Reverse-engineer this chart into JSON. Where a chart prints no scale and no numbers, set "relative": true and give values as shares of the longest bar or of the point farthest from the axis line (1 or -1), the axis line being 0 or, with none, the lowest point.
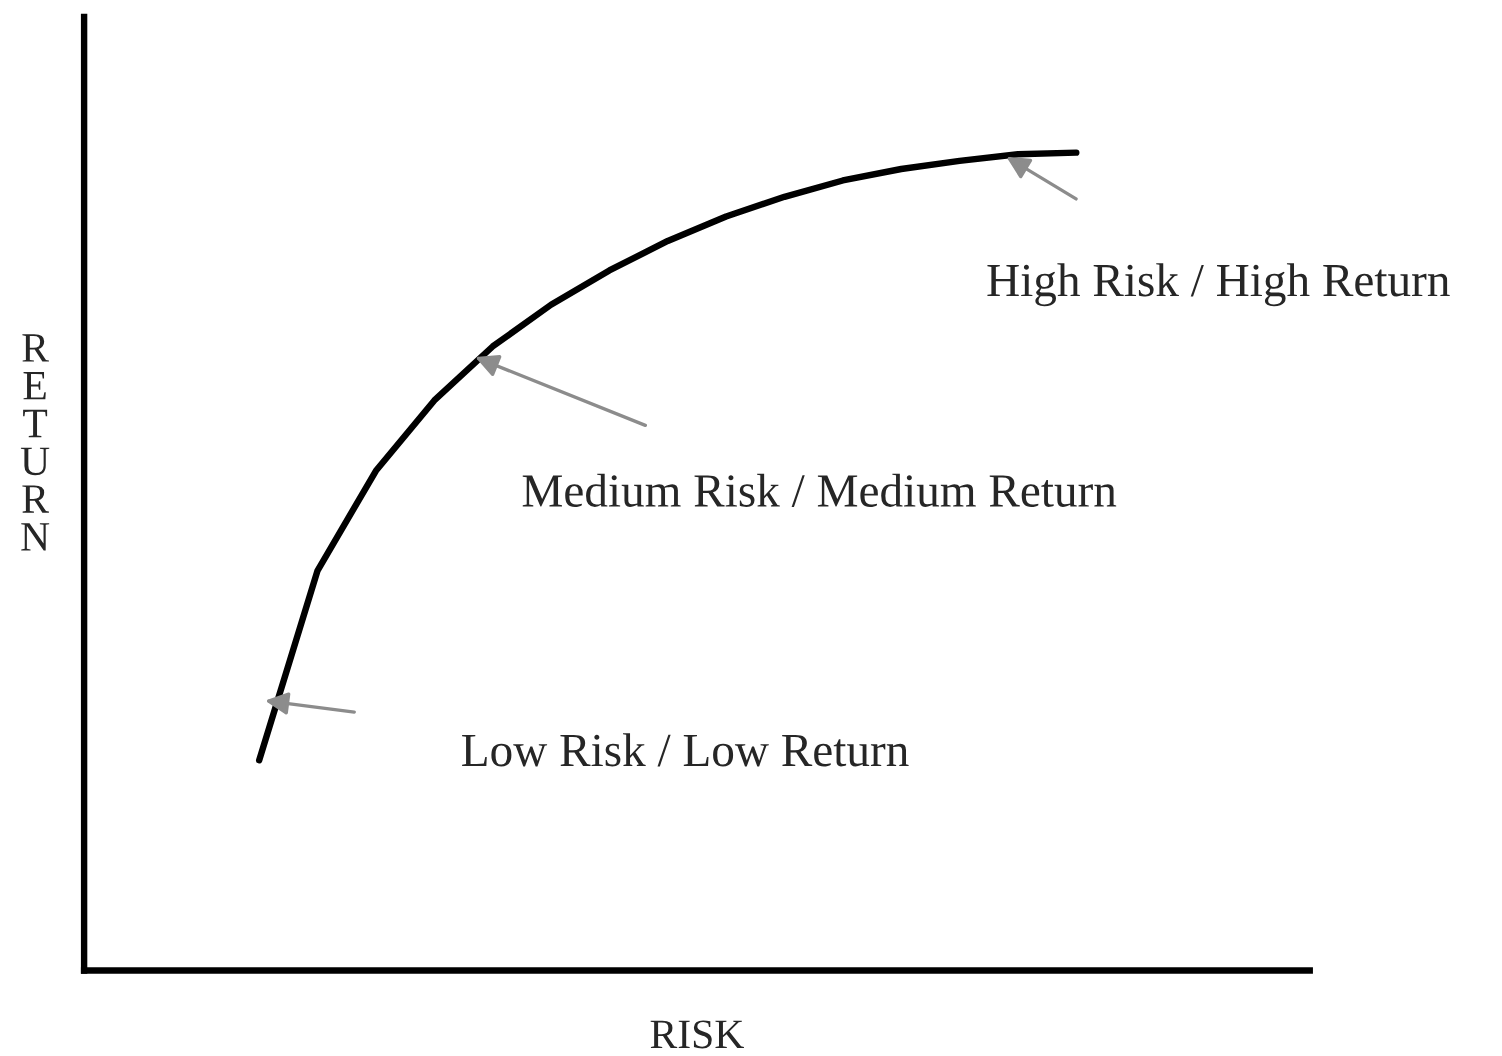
{
  "chart_data": {
    "type": "line",
    "relative": true,
    "xlabel": "RISK",
    "ylabel": "RETURN",
    "categories": [
      null,
      null,
      null,
      null,
      null,
      null,
      null,
      null,
      null,
      null,
      null,
      null,
      null,
      null,
      null,
      null,
      null,
      null,
      null,
      null,
      null,
      null
    ],
    "series": [
      {
        "color": "#000000",
        "values": [
          null,
          null,
          null,
          0.257,
          0.489,
          0.611,
          0.697,
          0.763,
          0.814,
          0.856,
          0.892,
          0.922,
          0.946,
          0.966,
          0.98,
          0.99,
          0.998,
          1,
          null,
          null,
          null,
          null
        ]
      }
    ],
    "annotations": [
      "Low Risk / Low Return",
      "Medium Risk / Medium Return",
      "High Risk / High Return"
    ],
    "marker": "none",
    "line_style": "solid",
    "grid": false,
    "legend": false
  }
}
